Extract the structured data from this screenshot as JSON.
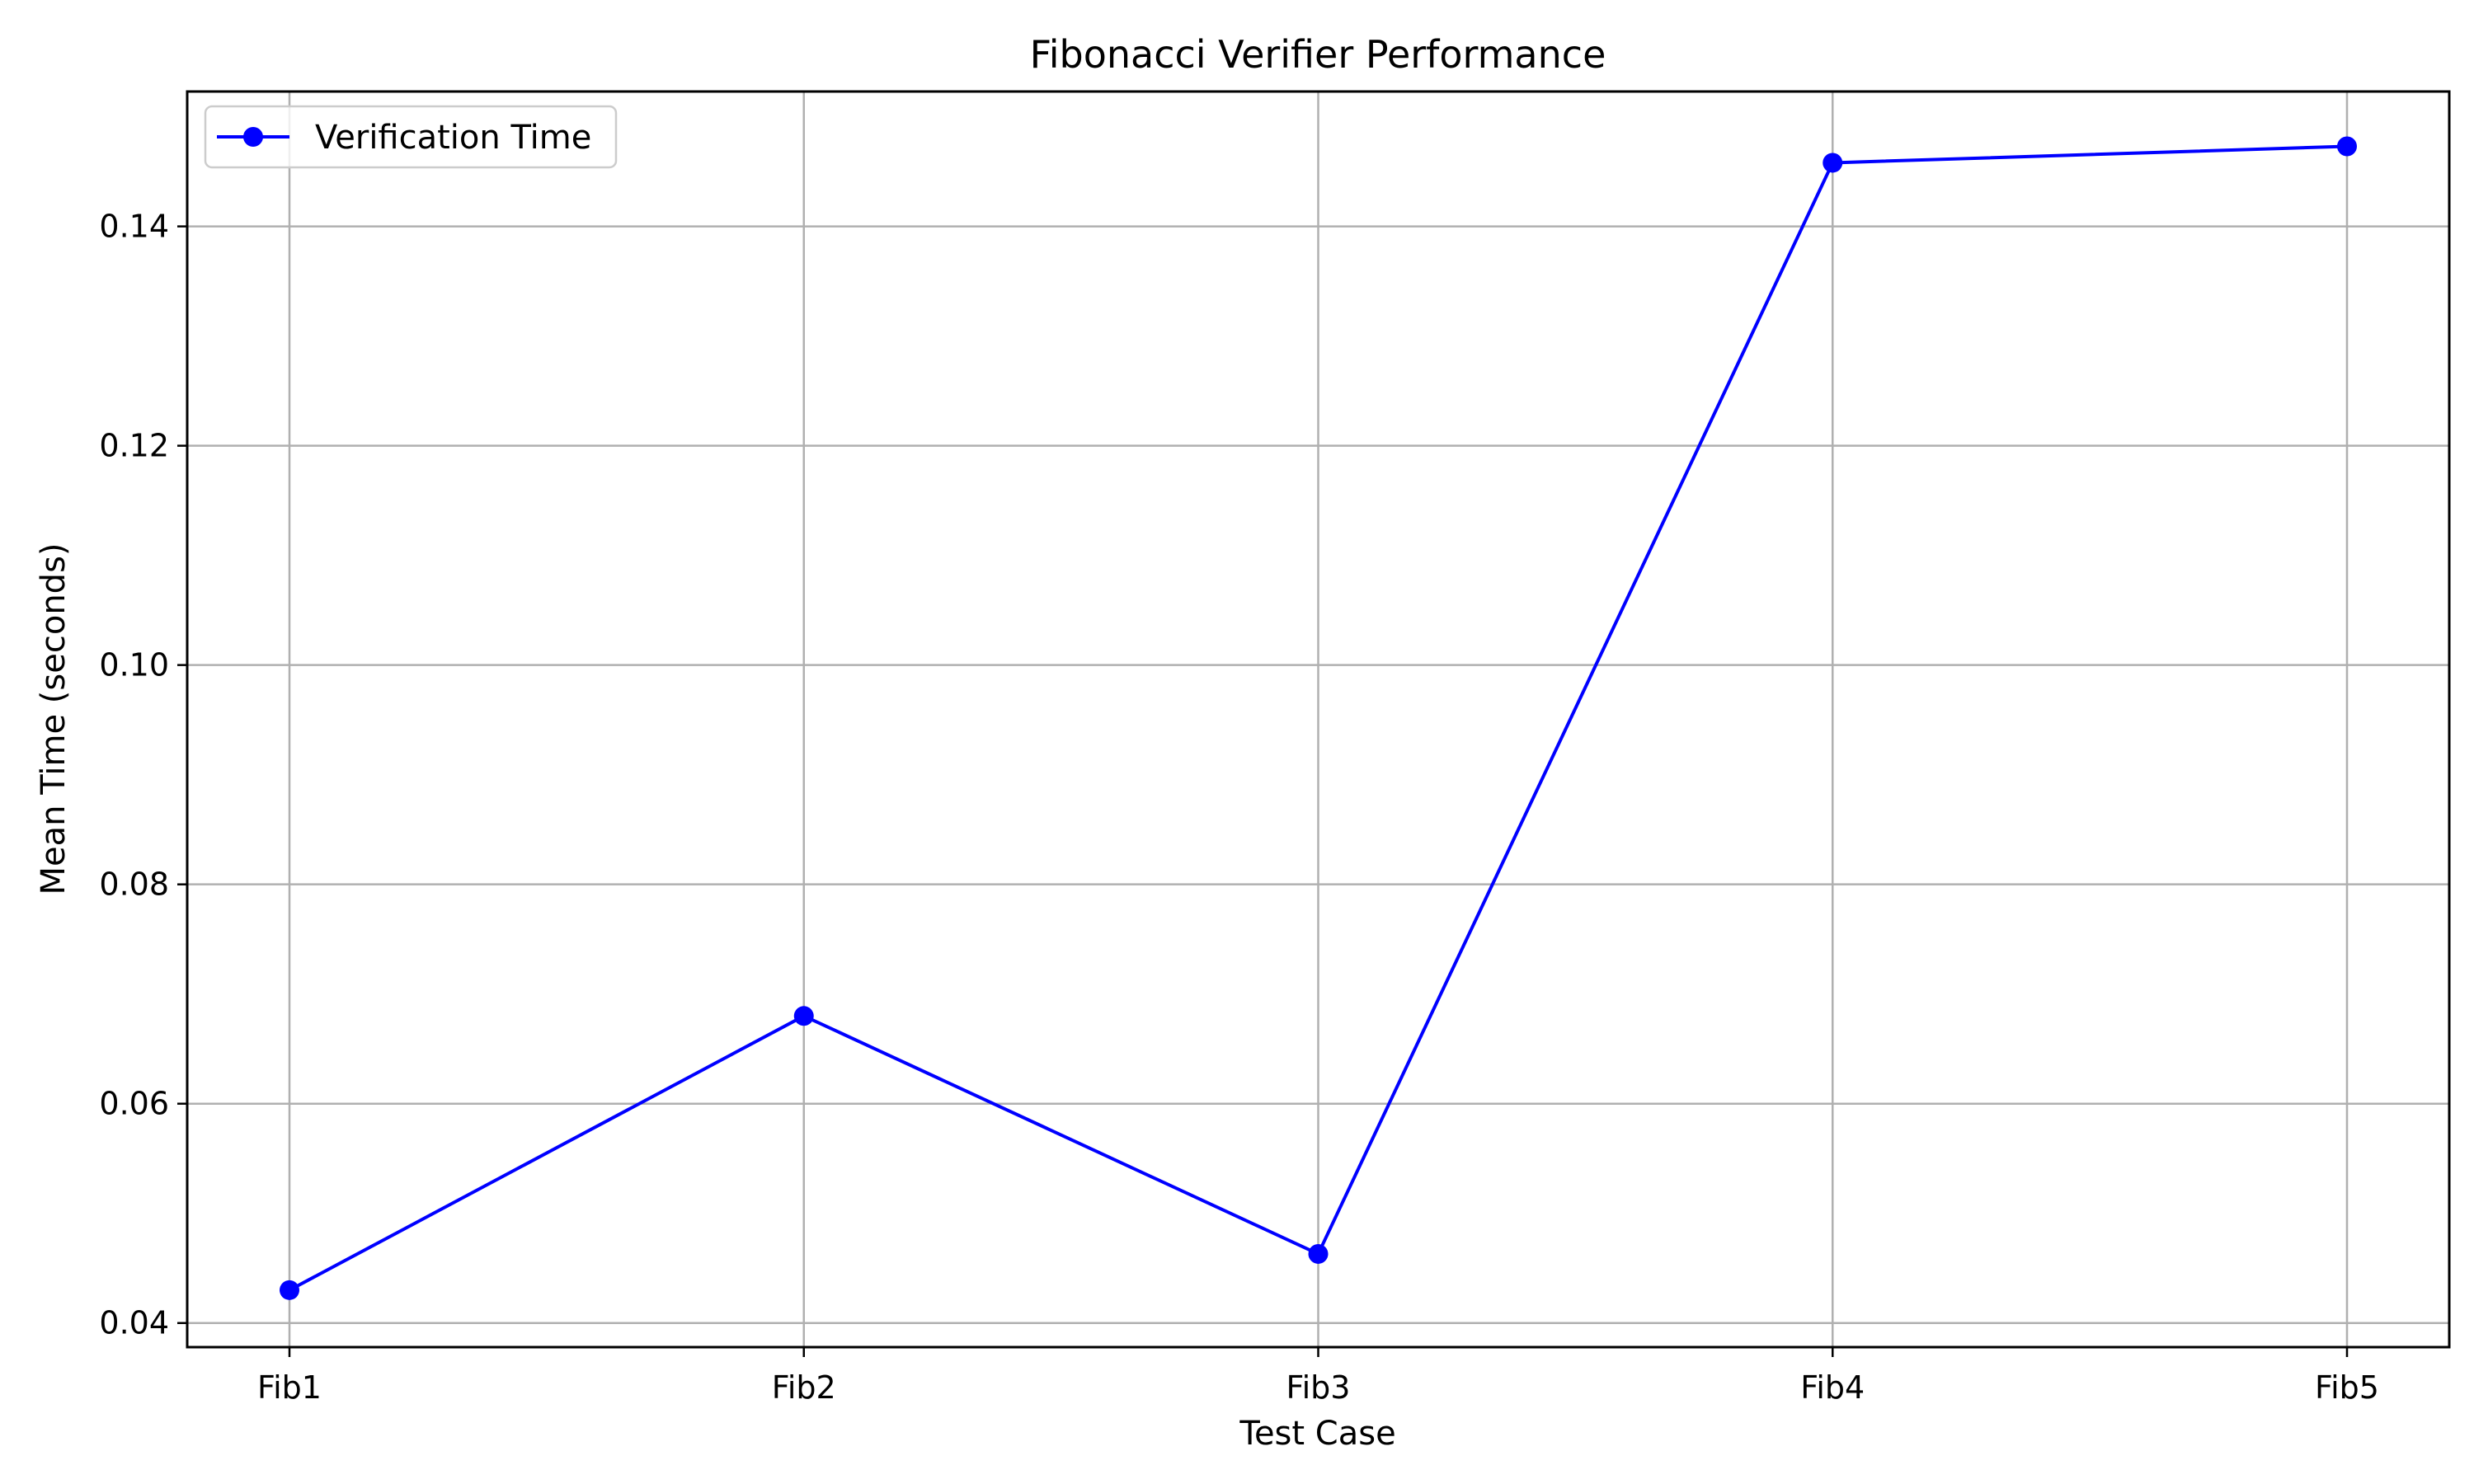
{
  "chart_data": {
    "type": "line",
    "title": "Fibonacci Verifier Performance",
    "xlabel": "Test Case",
    "ylabel": "Mean Time (seconds)",
    "categories": [
      "Fib1",
      "Fib2",
      "Fib3",
      "Fib4",
      "Fib5"
    ],
    "series": [
      {
        "name": "Verification Time",
        "values": [
          0.043,
          0.068,
          0.0463,
          0.1458,
          0.1473
        ],
        "color": "#0000ff",
        "marker": "circle"
      }
    ],
    "ylim": [
      0.0378,
      0.1523
    ],
    "yticks": [
      "0.04",
      "0.06",
      "0.08",
      "0.10",
      "0.12",
      "0.14"
    ],
    "grid": true,
    "legend_position": "top-left"
  },
  "colors": {
    "series": "#0000ff",
    "grid": "#b0b0b0",
    "axes": "#000000",
    "background": "#ffffff"
  }
}
